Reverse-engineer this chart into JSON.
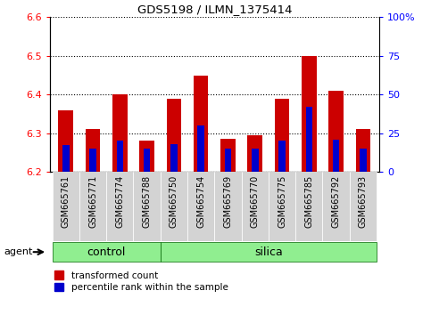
{
  "title": "GDS5198 / ILMN_1375414",
  "samples": [
    "GSM665761",
    "GSM665771",
    "GSM665774",
    "GSM665788",
    "GSM665750",
    "GSM665754",
    "GSM665769",
    "GSM665770",
    "GSM665775",
    "GSM665785",
    "GSM665792",
    "GSM665793"
  ],
  "groups": [
    "control",
    "control",
    "control",
    "control",
    "silica",
    "silica",
    "silica",
    "silica",
    "silica",
    "silica",
    "silica",
    "silica"
  ],
  "transformed_count": [
    6.36,
    6.31,
    6.4,
    6.28,
    6.39,
    6.45,
    6.285,
    6.295,
    6.39,
    6.5,
    6.41,
    6.31
  ],
  "percentile_rank": [
    17,
    15,
    20,
    15,
    18,
    30,
    15,
    15,
    20,
    42,
    21,
    15
  ],
  "baseline": 6.2,
  "ylim": [
    6.2,
    6.6
  ],
  "bar_width": 0.55,
  "blue_bar_width": 0.25,
  "bar_color_red": "#cc0000",
  "bar_color_blue": "#0000cc",
  "bg_color_xtick": "#d3d3d3",
  "green_color": "#90ee90",
  "agent_label": "agent",
  "control_label": "control",
  "silica_label": "silica",
  "legend_red": "transformed count",
  "legend_blue": "percentile rank within the sample",
  "n_control": 4,
  "n_silica": 8
}
